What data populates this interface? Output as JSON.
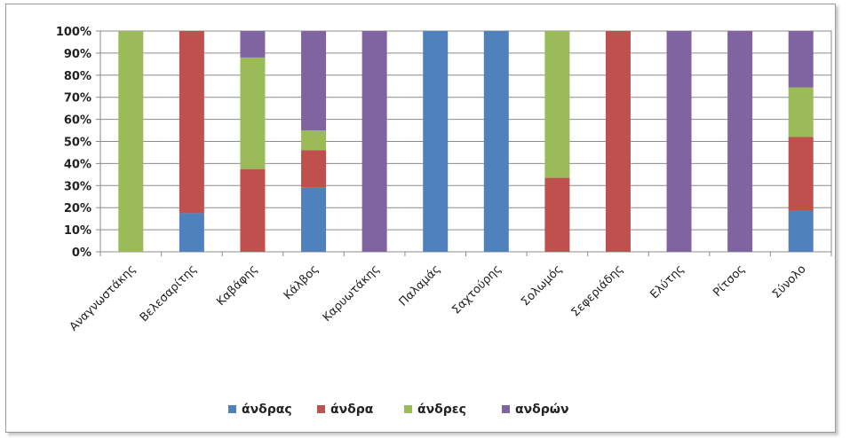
{
  "chart_data": {
    "type": "bar",
    "stacked": true,
    "percent": true,
    "title": "",
    "xlabel": "",
    "ylabel": "",
    "ylim": [
      0,
      100
    ],
    "yticks": [
      "0%",
      "10%",
      "20%",
      "30%",
      "40%",
      "50%",
      "60%",
      "70%",
      "80%",
      "90%",
      "100%"
    ],
    "grid": true,
    "legend_position": "bottom",
    "categories": [
      "Αναγνωστάκης",
      "Βελεσαρίτης",
      "Καβάφης",
      "Κάλβος",
      "Καρυωτάκης",
      "Παλαμάς",
      "Σαχτούρης",
      "Σολωμός",
      "Σεφεριάδης",
      "Ελύτης",
      "Ρίτσος",
      "Σύνολο"
    ],
    "series": [
      {
        "name": "άνδρας",
        "color": "#4f81bd",
        "values": [
          0,
          17.5,
          0,
          29,
          0,
          100,
          100,
          0,
          0,
          0,
          0,
          18.5
        ]
      },
      {
        "name": "άνδρα",
        "color": "#c0504d",
        "values": [
          0,
          82.5,
          37.5,
          17,
          0,
          0,
          0,
          33.5,
          100,
          0,
          0,
          33.5
        ]
      },
      {
        "name": "άνδρες",
        "color": "#9bbb59",
        "values": [
          100,
          0,
          50.5,
          9,
          0,
          0,
          0,
          66.5,
          0,
          0,
          0,
          22.5
        ]
      },
      {
        "name": "ανδρών",
        "color": "#8064a2",
        "values": [
          0,
          0,
          12,
          45,
          100,
          0,
          0,
          0,
          0,
          100,
          100,
          25.5
        ]
      }
    ]
  }
}
